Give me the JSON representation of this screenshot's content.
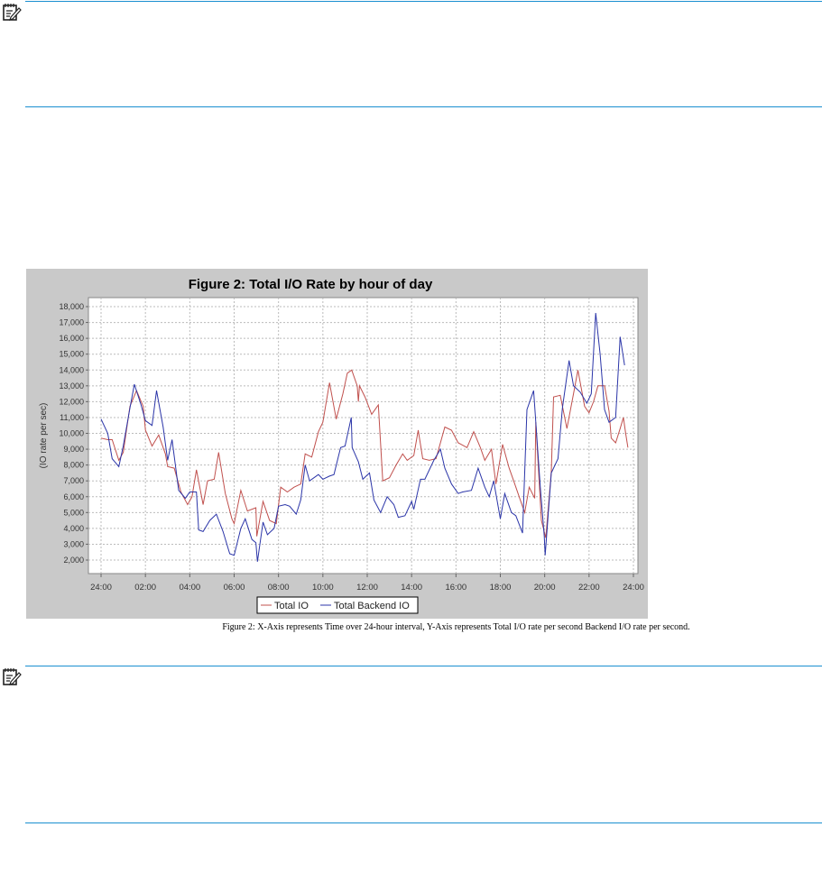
{
  "notes": [
    {
      "icon": "note-icon"
    },
    {
      "icon": "note-icon"
    }
  ],
  "colors": {
    "rule": "#1a8fd0",
    "total_io": "#c0504d",
    "backend_io": "#2b35a8",
    "chart_bg": "#c9c9c9"
  },
  "caption": "Figure 2: X-Axis represents Time over 24-hour interval, Y-Axis represents Total I/O rate per second Backend I/O rate per second.",
  "chart_data": {
    "type": "line",
    "title": "Figure 2: Total I/O Rate by hour of day",
    "xlabel": "",
    "ylabel": "(IO rate per sec)",
    "xlim": [
      0,
      24
    ],
    "ylim": [
      1000,
      18600
    ],
    "x_ticks": [
      0,
      2,
      4,
      6,
      8,
      10,
      12,
      14,
      16,
      18,
      20,
      22,
      24
    ],
    "x_tick_labels": [
      "24:00",
      "02:00",
      "04:00",
      "06:00",
      "08:00",
      "10:00",
      "12:00",
      "14:00",
      "16:00",
      "18:00",
      "20:00",
      "22:00",
      "24:00"
    ],
    "y_ticks": [
      2000,
      3000,
      4000,
      5000,
      6000,
      7000,
      8000,
      9000,
      10000,
      11000,
      12000,
      13000,
      14000,
      15000,
      16000,
      17000,
      18000
    ],
    "y_tick_labels": [
      "2,000",
      "3,000",
      "4,000",
      "5,000",
      "6,000",
      "7,000",
      "8,000",
      "9,000",
      "10,000",
      "11,000",
      "12,000",
      "13,000",
      "14,000",
      "15,000",
      "16,000",
      "17,000",
      "18,000"
    ],
    "grid": true,
    "legend_position": "bottom-center",
    "series": [
      {
        "name": "Total IO",
        "color": "#c0504d",
        "points": [
          [
            0,
            9700
          ],
          [
            0.3,
            9600
          ],
          [
            0.5,
            9600
          ],
          [
            0.8,
            8300
          ],
          [
            1.0,
            8800
          ],
          [
            1.3,
            11700
          ],
          [
            1.6,
            12700
          ],
          [
            1.9,
            11700
          ],
          [
            2.0,
            10200
          ],
          [
            2.3,
            9200
          ],
          [
            2.6,
            9900
          ],
          [
            2.9,
            8700
          ],
          [
            3.0,
            7900
          ],
          [
            3.3,
            7800
          ],
          [
            3.6,
            6300
          ],
          [
            3.9,
            5500
          ],
          [
            4.1,
            6000
          ],
          [
            4.3,
            7700
          ],
          [
            4.6,
            5500
          ],
          [
            4.8,
            7000
          ],
          [
            5.1,
            7100
          ],
          [
            5.3,
            8800
          ],
          [
            5.6,
            6200
          ],
          [
            5.9,
            4600
          ],
          [
            6.0,
            4300
          ],
          [
            6.3,
            6400
          ],
          [
            6.6,
            5100
          ],
          [
            6.98,
            5300
          ],
          [
            7.02,
            3500
          ],
          [
            7.3,
            5700
          ],
          [
            7.6,
            4500
          ],
          [
            7.9,
            4300
          ],
          [
            8.1,
            6600
          ],
          [
            8.4,
            6300
          ],
          [
            8.7,
            6600
          ],
          [
            9.0,
            6800
          ],
          [
            9.2,
            8700
          ],
          [
            9.5,
            8500
          ],
          [
            9.8,
            10100
          ],
          [
            10.0,
            10700
          ],
          [
            10.3,
            13200
          ],
          [
            10.6,
            10900
          ],
          [
            10.9,
            12500
          ],
          [
            11.1,
            13800
          ],
          [
            11.3,
            14000
          ],
          [
            11.55,
            13000
          ],
          [
            11.6,
            12000
          ],
          [
            11.65,
            13000
          ],
          [
            11.9,
            12300
          ],
          [
            12.2,
            11200
          ],
          [
            12.5,
            11800
          ],
          [
            12.7,
            7000
          ],
          [
            13.0,
            7200
          ],
          [
            13.3,
            8000
          ],
          [
            13.6,
            8700
          ],
          [
            13.8,
            8300
          ],
          [
            14.1,
            8600
          ],
          [
            14.3,
            10200
          ],
          [
            14.5,
            8400
          ],
          [
            14.8,
            8300
          ],
          [
            15.1,
            8400
          ],
          [
            15.5,
            10400
          ],
          [
            15.8,
            10200
          ],
          [
            16.1,
            9400
          ],
          [
            16.5,
            9100
          ],
          [
            16.8,
            10100
          ],
          [
            17.1,
            9100
          ],
          [
            17.3,
            8300
          ],
          [
            17.6,
            9000
          ],
          [
            17.8,
            6800
          ],
          [
            18.1,
            9300
          ],
          [
            18.4,
            7800
          ],
          [
            18.6,
            7000
          ],
          [
            18.9,
            5800
          ],
          [
            19.1,
            5000
          ],
          [
            19.3,
            6600
          ],
          [
            19.55,
            5900
          ],
          [
            19.6,
            10700
          ],
          [
            19.85,
            4500
          ],
          [
            20.05,
            3400
          ],
          [
            20.3,
            7600
          ],
          [
            20.4,
            12300
          ],
          [
            20.7,
            12400
          ],
          [
            21.0,
            10300
          ],
          [
            21.3,
            12500
          ],
          [
            21.5,
            14000
          ],
          [
            21.8,
            11700
          ],
          [
            22.0,
            11300
          ],
          [
            22.2,
            12000
          ],
          [
            22.4,
            13000
          ],
          [
            22.7,
            13000
          ],
          [
            22.9,
            11400
          ],
          [
            23.0,
            9700
          ],
          [
            23.2,
            9400
          ],
          [
            23.4,
            10300
          ],
          [
            23.55,
            11000
          ],
          [
            23.65,
            10000
          ],
          [
            23.75,
            9100
          ]
        ]
      },
      {
        "name": "Total Backend IO",
        "color": "#2b35a8",
        "points": [
          [
            0,
            10900
          ],
          [
            0.3,
            10000
          ],
          [
            0.5,
            8400
          ],
          [
            0.8,
            7900
          ],
          [
            1.0,
            9200
          ],
          [
            1.3,
            11600
          ],
          [
            1.5,
            13100
          ],
          [
            1.8,
            11800
          ],
          [
            2.0,
            10800
          ],
          [
            2.3,
            10500
          ],
          [
            2.5,
            12700
          ],
          [
            2.8,
            10400
          ],
          [
            3.0,
            8300
          ],
          [
            3.2,
            9600
          ],
          [
            3.5,
            6400
          ],
          [
            3.8,
            5900
          ],
          [
            4.0,
            6300
          ],
          [
            4.3,
            6300
          ],
          [
            4.4,
            3900
          ],
          [
            4.6,
            3800
          ],
          [
            4.9,
            4500
          ],
          [
            5.2,
            4900
          ],
          [
            5.5,
            3800
          ],
          [
            5.8,
            2400
          ],
          [
            6.0,
            2300
          ],
          [
            6.3,
            4000
          ],
          [
            6.5,
            4600
          ],
          [
            6.8,
            3300
          ],
          [
            6.98,
            3100
          ],
          [
            7.05,
            1900
          ],
          [
            7.3,
            4400
          ],
          [
            7.5,
            3600
          ],
          [
            7.8,
            4000
          ],
          [
            8.0,
            5400
          ],
          [
            8.3,
            5500
          ],
          [
            8.5,
            5400
          ],
          [
            8.8,
            4900
          ],
          [
            9.0,
            5800
          ],
          [
            9.2,
            8000
          ],
          [
            9.4,
            7000
          ],
          [
            9.8,
            7400
          ],
          [
            10.0,
            7100
          ],
          [
            10.3,
            7300
          ],
          [
            10.5,
            7400
          ],
          [
            10.8,
            9100
          ],
          [
            11.0,
            9200
          ],
          [
            11.28,
            11000
          ],
          [
            11.32,
            9100
          ],
          [
            11.6,
            8200
          ],
          [
            11.8,
            7100
          ],
          [
            12.1,
            7500
          ],
          [
            12.3,
            5800
          ],
          [
            12.6,
            5000
          ],
          [
            12.9,
            6000
          ],
          [
            13.2,
            5500
          ],
          [
            13.4,
            4700
          ],
          [
            13.7,
            4800
          ],
          [
            14.0,
            5700
          ],
          [
            14.1,
            5200
          ],
          [
            14.4,
            7100
          ],
          [
            14.6,
            7100
          ],
          [
            15.0,
            8300
          ],
          [
            15.3,
            9000
          ],
          [
            15.5,
            7800
          ],
          [
            15.8,
            6800
          ],
          [
            16.1,
            6200
          ],
          [
            16.3,
            6300
          ],
          [
            16.7,
            6400
          ],
          [
            17.0,
            7800
          ],
          [
            17.3,
            6600
          ],
          [
            17.5,
            6000
          ],
          [
            17.7,
            7000
          ],
          [
            18.0,
            4600
          ],
          [
            18.2,
            6200
          ],
          [
            18.5,
            5000
          ],
          [
            18.7,
            4800
          ],
          [
            19.0,
            3700
          ],
          [
            19.2,
            11500
          ],
          [
            19.5,
            12700
          ],
          [
            19.8,
            6600
          ],
          [
            19.98,
            3500
          ],
          [
            20.02,
            2300
          ],
          [
            20.3,
            7500
          ],
          [
            20.6,
            8400
          ],
          [
            20.8,
            11600
          ],
          [
            21.1,
            14600
          ],
          [
            21.3,
            13000
          ],
          [
            21.6,
            12600
          ],
          [
            21.9,
            11900
          ],
          [
            22.1,
            12500
          ],
          [
            22.3,
            17600
          ],
          [
            22.5,
            15000
          ],
          [
            22.7,
            11500
          ],
          [
            22.9,
            10700
          ],
          [
            23.2,
            11000
          ],
          [
            23.4,
            16100
          ],
          [
            23.6,
            14300
          ]
        ]
      }
    ]
  }
}
